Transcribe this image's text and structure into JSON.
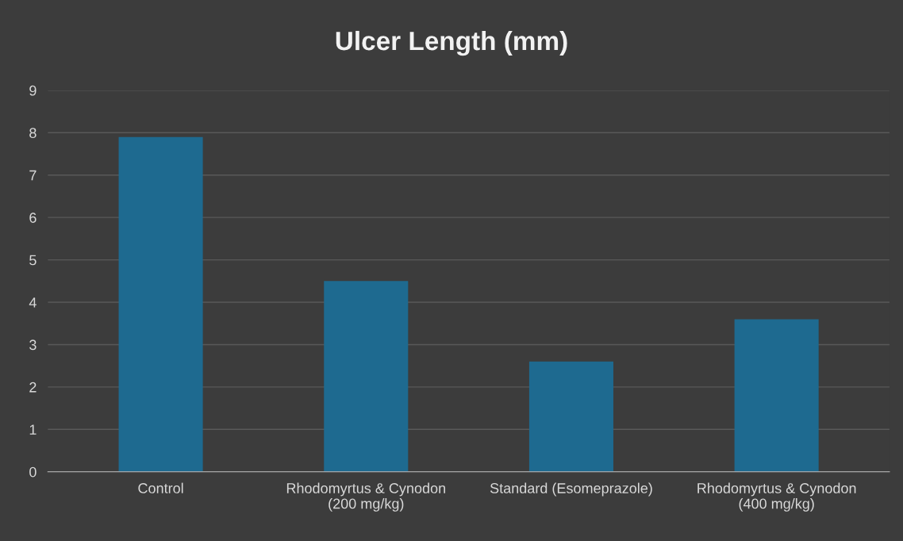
{
  "chart_data": {
    "type": "bar",
    "title": "Ulcer Length (mm)",
    "categories": [
      "Control",
      "Rhodomyrtus & Cynodon\n(200 mg/kg)",
      "Standard (Esomeprazole)",
      "Rhodomyrtus & Cynodon\n(400 mg/kg)"
    ],
    "values": [
      7.9,
      4.5,
      2.6,
      3.6
    ],
    "color": "#1e6a90",
    "ylim": [
      0,
      9
    ],
    "yticks": [
      0,
      1,
      2,
      3,
      4,
      5,
      6,
      7,
      8,
      9
    ],
    "grid": "y",
    "legend": false
  }
}
